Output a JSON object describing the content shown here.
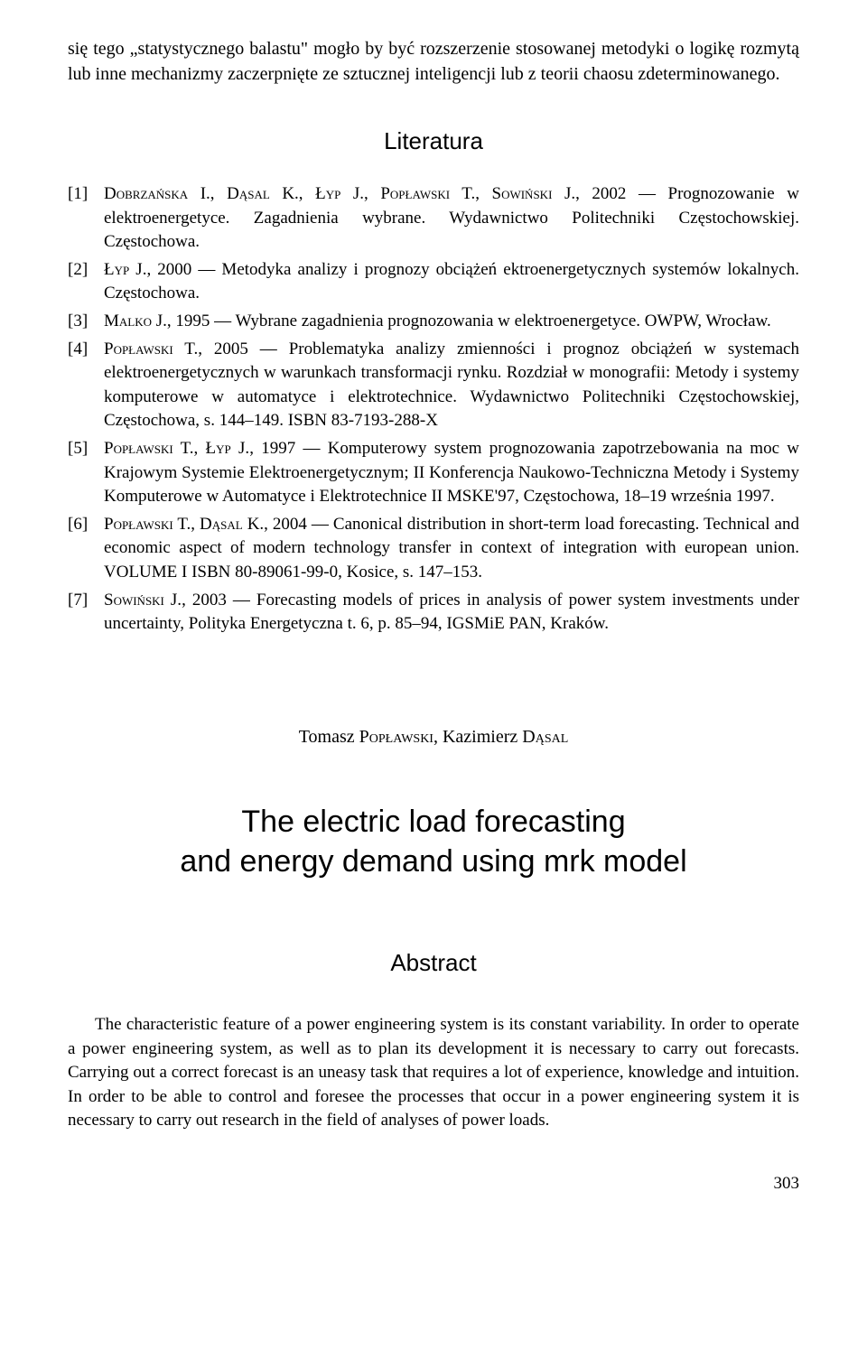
{
  "intro": {
    "text": "się tego „statystycznego balastu\" mogło by być rozszerzenie stosowanej metodyki o logikę rozmytą lub inne mechanizmy zaczerpnięte ze sztucznej inteligencji lub z teorii chaosu zdeterminowanego."
  },
  "literature": {
    "heading": "Literatura",
    "references": [
      {
        "index": "[1]",
        "authors": "Dobrzańska I., Dąsal K., Łyp J., Popławski T., Sowiński J.",
        "text": ", 2002 — Prognozowanie w elektroenergetyce. Zagadnienia wybrane. Wydawnictwo Politechniki Częstochowskiej. Częstochowa."
      },
      {
        "index": "[2]",
        "authors": "Łyp J.",
        "text": ", 2000 — Metodyka analizy i prognozy obciążeń ektroenergetycznych systemów lokalnych. Częstochowa."
      },
      {
        "index": "[3]",
        "authors": "Malko J.",
        "text": ", 1995 — Wybrane zagadnienia prognozowania w elektroenergetyce. OWPW, Wrocław."
      },
      {
        "index": "[4]",
        "authors": "Popławski T.",
        "text": ", 2005 — Problematyka analizy zmienności i prognoz obciążeń w systemach elektroenergetycznych w warunkach transformacji rynku. Rozdział w monografii: Metody i systemy komputerowe w automatyce i elektrotechnice. Wydawnictwo Politechniki Częstochowskiej, Częstochowa, s. 144–149. ISBN 83-7193-288-X"
      },
      {
        "index": "[5]",
        "authors": "Popławski T., Łyp J.",
        "text": ",  1997 — Komputerowy system prognozowania zapotrzebowania na moc w Krajowym Systemie Elektroenergetycznym; II Konferencja Naukowo-Techniczna Metody i Systemy Komputerowe w Automatyce i Elektrotechnice II MSKE'97, Częstochowa, 18–19 września 1997."
      },
      {
        "index": "[6]",
        "authors": "Popławski T., Dąsal K.",
        "text": ", 2004 — Canonical distribution in short-term load forecasting. Technical and economic aspect of modern technology transfer in context of integration with european union. VOLUME I ISBN 80-89061-99-0, Kosice, s. 147–153."
      },
      {
        "index": "[7]",
        "authors": "Sowiński J.",
        "text": ", 2003 — Forecasting models of prices in analysis of power system investments under uncertainty, Polityka Energetyczna t. 6, p. 85–94, IGSMiE PAN, Kraków."
      }
    ]
  },
  "paper": {
    "author1_first": "Tomasz",
    "author1_last": "Popławski",
    "author2_first": "Kazimierz",
    "author2_last": "Dąsal",
    "title_line1": "The electric load forecasting",
    "title_line2": "and energy demand using mrk model",
    "abstract_heading": "Abstract",
    "abstract_text": "The characteristic feature of a power engineering system is its constant variability. In order to operate a power engineering system, as well as to plan its development it is necessary to carry out forecasts. Carrying out a correct forecast is an uneasy task that requires a lot of experience, knowledge and intuition. In order to be able to control and foresee the processes that occur in a power engineering system it is necessary to carry out research in the field of analyses of power loads."
  },
  "page_number": "303"
}
